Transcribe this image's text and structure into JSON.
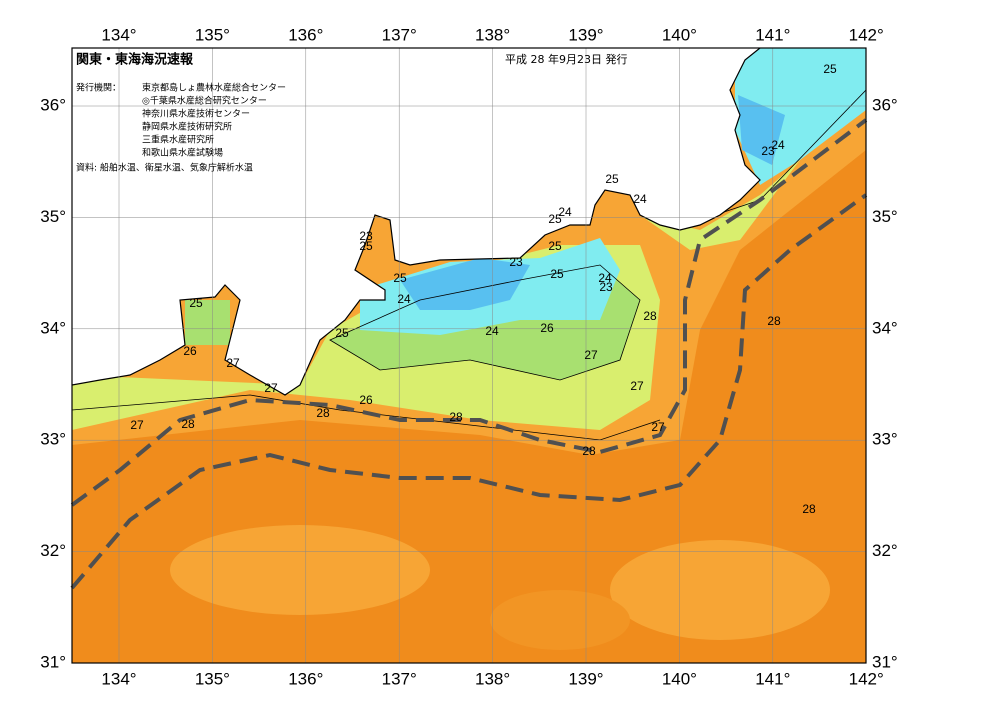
{
  "header": {
    "title": "関東・東海海況速報",
    "date": "平成 28 年9月23日 発行"
  },
  "issuers": {
    "heading": "発行機関：",
    "names": [
      "東京都島しょ農林水産総合センター",
      "◎千葉県水産総合研究センター",
      "神奈川県水産技術センター",
      "静岡県水産技術研究所",
      "三重県水産研究所",
      "和歌山県水産試験場"
    ]
  },
  "sources": "資料: 船舶水温、衛星水温、気象庁解析水温",
  "map": {
    "lon_ticks": [
      {
        "value": 134,
        "label": "134°"
      },
      {
        "value": 135,
        "label": "135°"
      },
      {
        "value": 136,
        "label": "136°"
      },
      {
        "value": 137,
        "label": "137°"
      },
      {
        "value": 138,
        "label": "138°"
      },
      {
        "value": 139,
        "label": "139°"
      },
      {
        "value": 140,
        "label": "140°"
      },
      {
        "value": 141,
        "label": "141°"
      },
      {
        "value": 142,
        "label": "142°"
      }
    ],
    "lat_ticks": [
      {
        "value": 31,
        "label": "31°"
      },
      {
        "value": 32,
        "label": "32°"
      },
      {
        "value": 33,
        "label": "33°"
      },
      {
        "value": 34,
        "label": "34°"
      },
      {
        "value": 35,
        "label": "35°"
      },
      {
        "value": 36,
        "label": "36°"
      }
    ],
    "contour_labels": [
      25,
      23,
      24,
      25,
      24,
      24,
      25,
      23,
      25,
      25,
      23,
      25,
      24,
      23,
      25,
      24,
      25,
      28,
      28,
      24,
      26,
      25,
      26,
      27,
      27,
      27,
      26,
      27,
      28,
      28,
      27,
      28,
      27,
      28,
      28
    ]
  }
}
